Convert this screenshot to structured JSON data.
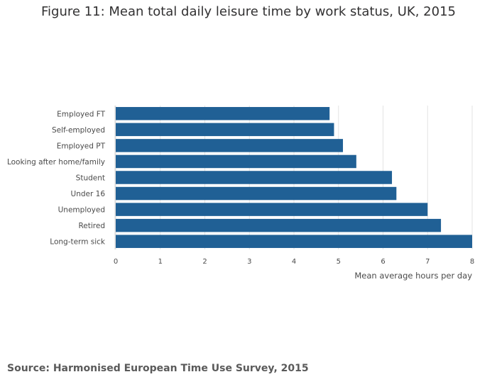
{
  "chart_data": {
    "type": "bar",
    "orientation": "horizontal",
    "title": "Figure 11: Mean total daily leisure time by work status, UK, 2015",
    "categories": [
      "Employed FT",
      "Self-employed",
      "Employed PT",
      "Looking after home/family",
      "Student",
      "Under 16",
      "Unemployed",
      "Retired",
      "Long-term sick"
    ],
    "values": [
      4.8,
      4.9,
      5.1,
      5.4,
      6.2,
      6.3,
      7.0,
      7.3,
      8.0
    ],
    "xlabel": "Mean average hours per day",
    "ylabel": "",
    "xlim": [
      0,
      8
    ],
    "xticks": [
      "0",
      "1",
      "2",
      "3",
      "4",
      "5",
      "6",
      "7",
      "8"
    ],
    "grid": true,
    "bar_color": "#206095"
  },
  "source": "Source: Harmonised European Time Use Survey, 2015"
}
